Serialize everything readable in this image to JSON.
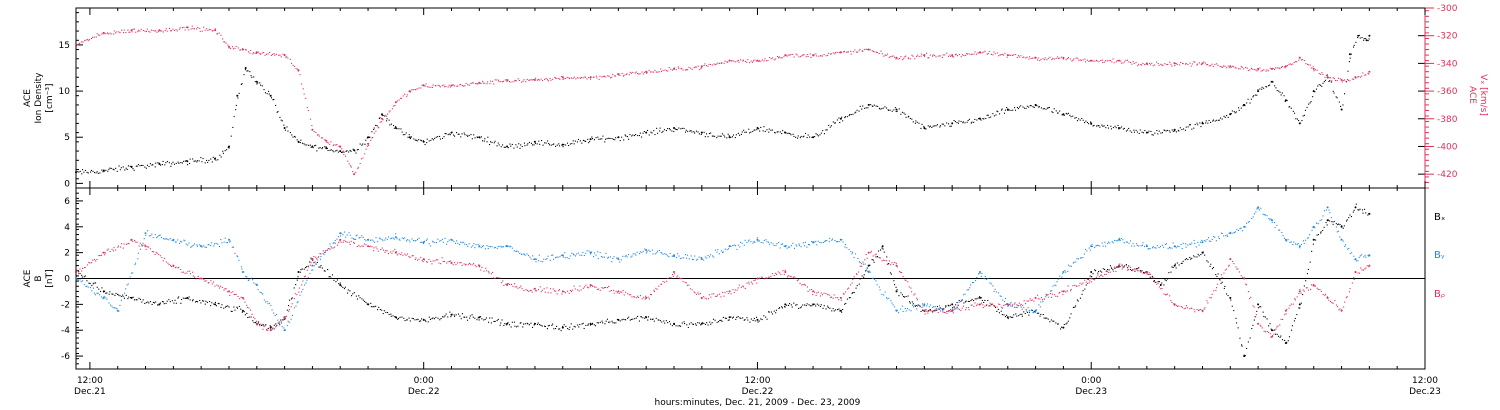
{
  "chart_data": {
    "type": "scatter",
    "xlabel": "hours:minutes, Dec. 21, 2009 - Dec. 23, 2009",
    "xlim": [
      11.5,
      60
    ],
    "x_ticks": [
      {
        "hour": 12,
        "time": "12:00",
        "date": "Dec.21"
      },
      {
        "hour": 24,
        "time": "0:00",
        "date": "Dec.22"
      },
      {
        "hour": 36,
        "time": "12:00",
        "date": "Dec.22"
      },
      {
        "hour": 48,
        "time": "0:00",
        "date": "Dec.23"
      },
      {
        "hour": 60,
        "time": "12:00",
        "date": "Dec.23"
      }
    ],
    "panels": [
      {
        "name": "density-velocity",
        "y_left": {
          "label_lines": [
            "ACE",
            "Ion Density",
            "[cm⁻³]"
          ],
          "ylim": [
            -0.5,
            19
          ],
          "ticks": [
            0,
            5,
            10,
            15
          ],
          "color": "#000000"
        },
        "y_right": {
          "label_lines": [
            "ACE",
            "Vₓ [km/s]"
          ],
          "ylim": [
            -430,
            -300
          ],
          "ticks": [
            -420,
            -400,
            -380,
            -360,
            -340,
            -320,
            -300
          ],
          "color": "#e0305a"
        },
        "series": [
          {
            "axis": "left",
            "color": "#000000",
            "x": [
              11.5,
              12.5,
              13.5,
              14.5,
              15.5,
              16.5,
              17.0,
              17.3,
              17.6,
              18.0,
              18.5,
              19.0,
              19.5,
              20.0,
              20.5,
              21.0,
              21.5,
              22.0,
              22.5,
              23.0,
              23.5,
              24.0,
              25.0,
              26.0,
              27.0,
              28.0,
              29.0,
              30.0,
              31.0,
              32.0,
              33.0,
              34.0,
              35.0,
              36.0,
              37.0,
              38.0,
              39.0,
              40.0,
              41.0,
              42.0,
              43.0,
              44.0,
              45.0,
              46.0,
              47.0,
              48.0,
              49.0,
              50.0,
              51.0,
              52.0,
              53.0,
              53.5,
              54.0,
              54.5,
              55.0,
              55.5,
              56.0,
              56.5,
              57.0,
              57.3,
              57.6,
              57.9,
              58.0
            ],
            "y": [
              1.2,
              1.4,
              1.8,
              2.1,
              2.4,
              2.7,
              4.0,
              9.5,
              12.5,
              11.0,
              9.5,
              6.0,
              4.5,
              4.0,
              3.8,
              3.5,
              3.6,
              5.0,
              7.5,
              6.0,
              5.0,
              4.5,
              5.5,
              5.0,
              4.0,
              4.5,
              4.2,
              4.8,
              5.0,
              5.5,
              6.0,
              5.5,
              5.0,
              6.0,
              5.5,
              5.0,
              7.0,
              8.5,
              8.0,
              6.0,
              6.5,
              7.0,
              8.0,
              8.5,
              7.5,
              6.5,
              6.0,
              5.5,
              5.8,
              6.5,
              7.5,
              8.5,
              10.0,
              11.0,
              9.0,
              6.5,
              10.0,
              11.5,
              8.0,
              14.0,
              16.0,
              15.5,
              16.0
            ]
          },
          {
            "axis": "right",
            "color": "#e0305a",
            "x": [
              11.5,
              12.5,
              13.5,
              14.5,
              15.5,
              16.5,
              17.0,
              17.5,
              18.0,
              19.0,
              19.5,
              20.0,
              20.5,
              21.0,
              21.5,
              22.0,
              22.5,
              23.0,
              23.5,
              24.0,
              25.0,
              26.0,
              27.0,
              28.0,
              29.0,
              30.0,
              31.0,
              32.0,
              33.0,
              34.0,
              35.0,
              36.0,
              37.0,
              38.0,
              39.0,
              40.0,
              41.0,
              42.0,
              43.0,
              44.0,
              45.0,
              46.0,
              47.0,
              48.0,
              49.0,
              50.0,
              51.0,
              52.0,
              53.0,
              54.0,
              54.5,
              55.0,
              55.5,
              56.0,
              56.5,
              57.0,
              57.5,
              58.0
            ],
            "y": [
              -326,
              -318,
              -316,
              -316,
              -314,
              -316,
              -328,
              -330,
              -332,
              -334,
              -345,
              -388,
              -396,
              -400,
              -420,
              -398,
              -380,
              -368,
              -360,
              -356,
              -356,
              -354,
              -352,
              -352,
              -350,
              -350,
              -348,
              -346,
              -344,
              -342,
              -338,
              -338,
              -334,
              -334,
              -332,
              -330,
              -336,
              -334,
              -334,
              -332,
              -334,
              -336,
              -336,
              -338,
              -338,
              -340,
              -340,
              -340,
              -342,
              -344,
              -344,
              -342,
              -336,
              -344,
              -350,
              -352,
              -350,
              -346
            ]
          }
        ]
      },
      {
        "name": "magnetic-field",
        "y_left": {
          "label_lines": [
            "ACE",
            "B",
            "[nT]"
          ],
          "ylim": [
            -7,
            7
          ],
          "ticks": [
            -6,
            -4,
            -2,
            0,
            2,
            4,
            6
          ],
          "color": "#000000"
        },
        "legend": [
          {
            "label": "Bₓ",
            "color": "#000000"
          },
          {
            "label": "Bᵧ",
            "color": "#1e88e5"
          },
          {
            "label": "Bᵨ",
            "color": "#e0305a"
          }
        ],
        "series": [
          {
            "name": "Bₓ",
            "color": "#000000",
            "x": [
              11.5,
              12.5,
              13.5,
              14.5,
              15.5,
              16.5,
              17.5,
              18.0,
              18.5,
              19.0,
              19.5,
              20.0,
              21.0,
              22.0,
              23.0,
              24.0,
              25.0,
              26.0,
              27.0,
              28.0,
              29.0,
              30.0,
              31.0,
              32.0,
              33.0,
              34.0,
              35.0,
              36.0,
              37.0,
              38.0,
              39.0,
              40.0,
              40.5,
              41.0,
              42.0,
              43.0,
              44.0,
              45.0,
              46.0,
              47.0,
              48.0,
              49.0,
              50.0,
              50.5,
              51.0,
              52.0,
              53.0,
              53.5,
              54.0,
              54.5,
              55.0,
              55.5,
              56.0,
              56.5,
              57.0,
              57.5,
              58.0
            ],
            "y": [
              0.5,
              -1.0,
              -1.5,
              -2.0,
              -1.5,
              -2.0,
              -2.5,
              -3.5,
              -3.8,
              -3.0,
              0.5,
              1.5,
              -0.5,
              -2.0,
              -3.0,
              -3.2,
              -2.8,
              -3.0,
              -3.5,
              -3.5,
              -3.8,
              -3.5,
              -3.2,
              -3.0,
              -3.5,
              -3.5,
              -3.0,
              -3.2,
              -2.0,
              -2.0,
              -2.5,
              1.0,
              2.5,
              -1.0,
              -2.5,
              -2.0,
              -1.5,
              -3.0,
              -2.5,
              -3.8,
              0.5,
              1.0,
              0.5,
              -0.5,
              1.0,
              2.0,
              -1.5,
              -6.0,
              -2.0,
              -4.0,
              -5.0,
              -2.0,
              3.0,
              4.5,
              4.0,
              5.5,
              5.0
            ]
          },
          {
            "name": "Bᵧ",
            "color": "#1e88e5",
            "x": [
              11.5,
              12.5,
              13.0,
              14.0,
              15.0,
              16.0,
              17.0,
              17.5,
              18.0,
              19.0,
              20.0,
              21.0,
              22.0,
              23.0,
              24.0,
              25.0,
              26.0,
              27.0,
              28.0,
              29.0,
              30.0,
              31.0,
              32.0,
              33.0,
              34.0,
              35.0,
              36.0,
              37.0,
              38.0,
              39.0,
              40.0,
              41.0,
              42.0,
              43.0,
              44.0,
              45.0,
              46.0,
              47.0,
              48.0,
              49.0,
              50.0,
              51.0,
              52.0,
              53.0,
              53.5,
              54.0,
              54.5,
              55.0,
              55.5,
              56.0,
              56.5,
              57.0,
              57.5,
              58.0
            ],
            "y": [
              0.0,
              -1.5,
              -2.5,
              3.5,
              3.0,
              2.5,
              3.0,
              0.5,
              -0.5,
              -4.0,
              1.0,
              3.5,
              3.0,
              3.2,
              2.8,
              3.0,
              2.5,
              2.5,
              1.5,
              1.8,
              2.0,
              1.5,
              2.2,
              1.8,
              1.5,
              2.5,
              3.0,
              2.5,
              2.8,
              3.0,
              0.5,
              -2.5,
              -2.0,
              -2.5,
              0.5,
              -2.0,
              -2.5,
              0.5,
              2.5,
              3.0,
              2.5,
              2.5,
              2.8,
              3.5,
              4.0,
              5.5,
              4.5,
              3.0,
              2.5,
              4.0,
              5.5,
              3.0,
              1.5,
              1.8
            ]
          },
          {
            "name": "Bᵨ",
            "color": "#e0305a",
            "x": [
              11.5,
              12.5,
              13.5,
              14.0,
              15.0,
              16.0,
              17.0,
              17.5,
              18.0,
              18.5,
              19.0,
              20.0,
              21.0,
              22.0,
              23.0,
              24.0,
              25.0,
              26.0,
              27.0,
              28.0,
              29.0,
              30.0,
              31.0,
              32.0,
              33.0,
              34.0,
              35.0,
              36.0,
              37.0,
              38.0,
              39.0,
              40.0,
              41.0,
              42.0,
              43.0,
              44.0,
              45.0,
              46.0,
              47.0,
              48.0,
              49.0,
              50.0,
              51.0,
              52.0,
              53.0,
              53.5,
              54.0,
              54.5,
              55.0,
              55.5,
              56.0,
              56.5,
              57.0,
              57.5,
              58.0
            ],
            "y": [
              0.5,
              2.0,
              3.0,
              2.5,
              1.0,
              0.0,
              -1.0,
              -1.5,
              -3.5,
              -4.0,
              -3.0,
              1.5,
              3.0,
              2.5,
              2.0,
              1.5,
              1.2,
              1.0,
              -0.5,
              -0.8,
              -1.0,
              -0.5,
              -1.0,
              -1.5,
              0.5,
              -1.5,
              -1.0,
              0.0,
              0.5,
              -1.0,
              -1.5,
              2.0,
              1.0,
              -2.5,
              -2.5,
              -2.0,
              -2.0,
              -1.5,
              -1.0,
              0.0,
              1.0,
              0.5,
              -2.0,
              -2.5,
              1.5,
              0.0,
              -3.5,
              -4.5,
              -2.5,
              -1.0,
              -0.5,
              -1.5,
              -2.5,
              0.5,
              1.0
            ]
          }
        ]
      }
    ]
  }
}
